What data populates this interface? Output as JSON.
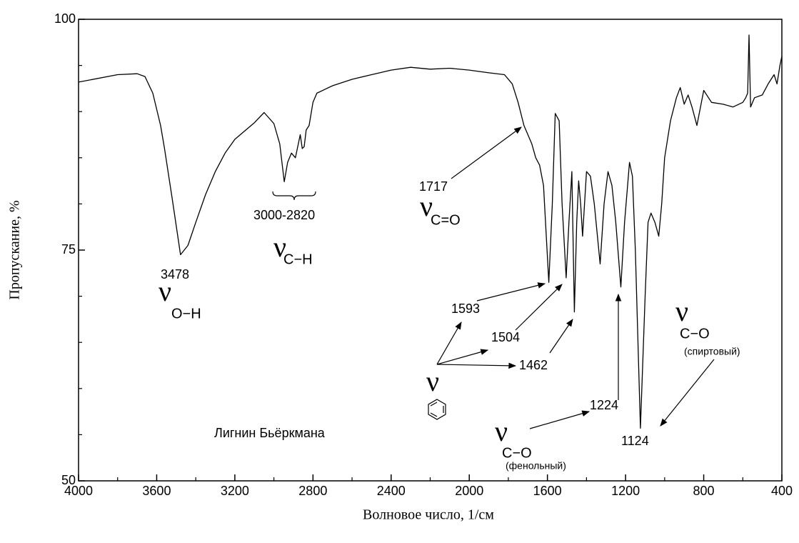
{
  "chart_data": {
    "type": "line",
    "xlabel": "Волновое число, 1/см",
    "ylabel": "Пропускание, %",
    "xlim": [
      4000,
      400
    ],
    "ylim": [
      50,
      100
    ],
    "xticks": [
      4000,
      3600,
      3200,
      2800,
      2400,
      2000,
      1600,
      1200,
      800,
      400
    ],
    "xticks_minor": [
      3800,
      3400,
      3000,
      2600,
      2200,
      1800,
      1400,
      1000,
      600
    ],
    "yticks": [
      50,
      75,
      100
    ],
    "yticks_minor": [
      55,
      60,
      65,
      70,
      80,
      85,
      90,
      95
    ],
    "color": "#000000",
    "x": [
      4000,
      3800,
      3700,
      3660,
      3620,
      3580,
      3560,
      3520,
      3478,
      3440,
      3400,
      3350,
      3300,
      3250,
      3200,
      3100,
      3050,
      3000,
      2970,
      2947,
      2930,
      2910,
      2890,
      2875,
      2865,
      2855,
      2845,
      2835,
      2820,
      2800,
      2780,
      2740,
      2700,
      2600,
      2500,
      2400,
      2300,
      2200,
      2100,
      2000,
      1900,
      1820,
      1780,
      1750,
      1720,
      1700,
      1680,
      1660,
      1640,
      1620,
      1593,
      1575,
      1560,
      1540,
      1525,
      1504,
      1490,
      1475,
      1462,
      1450,
      1440,
      1430,
      1420,
      1400,
      1380,
      1360,
      1330,
      1310,
      1290,
      1270,
      1250,
      1224,
      1205,
      1180,
      1165,
      1150,
      1124,
      1100,
      1085,
      1070,
      1050,
      1030,
      1015,
      1000,
      970,
      940,
      920,
      900,
      880,
      860,
      835,
      800,
      760,
      700,
      650,
      600,
      585,
      575,
      568,
      560,
      540,
      500,
      470,
      440,
      425,
      410,
      400
    ],
    "values": [
      93.2,
      94.0,
      94.1,
      93.8,
      92.0,
      88.5,
      86,
      80.5,
      74.5,
      75.5,
      78,
      81,
      83.5,
      85.5,
      87,
      88.8,
      89.9,
      88.7,
      86.5,
      82.4,
      84.5,
      85.5,
      85,
      86.5,
      87.5,
      86,
      86.2,
      88,
      88.5,
      91,
      92,
      92.4,
      92.8,
      93.5,
      94,
      94.5,
      94.8,
      94.6,
      94.7,
      94.5,
      94.2,
      94.0,
      93,
      91,
      88.5,
      87.5,
      86.5,
      85,
      84.2,
      82,
      71.5,
      80,
      89.8,
      89,
      80,
      72,
      78,
      83.5,
      68.3,
      78,
      82.5,
      80,
      76.5,
      83.5,
      83,
      80,
      73.5,
      80,
      83.5,
      82,
      78,
      71,
      78,
      84.5,
      83,
      75,
      55.7,
      70,
      78,
      79,
      78,
      76.5,
      80,
      85,
      89,
      91.5,
      92.6,
      90.8,
      91.8,
      90.5,
      88.5,
      92.3,
      91,
      90.8,
      90.5,
      91,
      91.5,
      92,
      98.3,
      90.5,
      91.5,
      91.8,
      93,
      94,
      93,
      95,
      96
    ],
    "annotations": [
      "3478",
      "3000-2820",
      "1717",
      "1593",
      "1504",
      "1462",
      "1224",
      "1124"
    ],
    "symbols": [
      {
        "symbol": "ν",
        "sub": "O−H"
      },
      {
        "symbol": "ν",
        "sub": "C−H"
      },
      {
        "symbol": "ν",
        "sub": "C=O"
      },
      {
        "symbol": "ν"
      },
      {
        "symbol": "ν",
        "sub": "C−O",
        "note": "(фенольный)"
      },
      {
        "symbol": "ν",
        "sub": "C−O",
        "note": "(спиртовый)"
      }
    ],
    "label": "Лигнин Бьёркмана"
  }
}
